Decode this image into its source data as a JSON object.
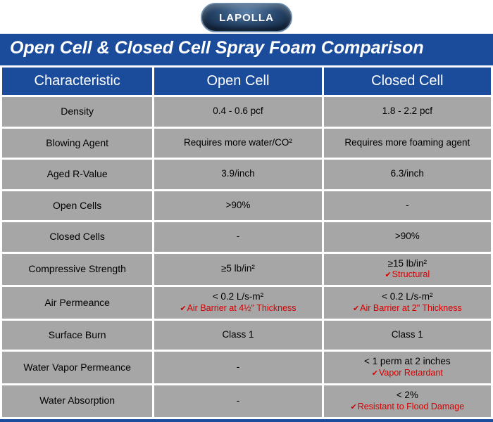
{
  "logo_text": "LAPOLLA",
  "title": "Open Cell & Closed Cell Spray Foam Comparison",
  "colors": {
    "header_bg": "#1b4b9b",
    "cell_bg": "#a6a6a6",
    "note_color": "#d40000",
    "page_bg": "#ffffff",
    "header_text": "#ffffff",
    "cell_text": "#000000"
  },
  "table": {
    "columns": [
      "Characteristic",
      "Open Cell",
      "Closed Cell"
    ],
    "rows": [
      {
        "char": "Density",
        "open": {
          "v": "0.4 - 0.6 pcf"
        },
        "closed": {
          "v": "1.8 - 2.2 pcf"
        }
      },
      {
        "char": "Blowing Agent",
        "open": {
          "v": "Requires more water/CO²"
        },
        "closed": {
          "v": "Requires more foaming agent"
        }
      },
      {
        "char": "Aged R-Value",
        "open": {
          "v": "3.9/inch"
        },
        "closed": {
          "v": "6.3/inch"
        }
      },
      {
        "char": "Open Cells",
        "open": {
          "v": ">90%"
        },
        "closed": {
          "v": "-"
        }
      },
      {
        "char": "Closed Cells",
        "open": {
          "v": "-"
        },
        "closed": {
          "v": ">90%"
        }
      },
      {
        "char": "Compressive Strength",
        "open": {
          "v": "≥5 lb/in²"
        },
        "closed": {
          "v": "≥15 lb/in²",
          "note": "Structural"
        }
      },
      {
        "char": "Air Permeance",
        "open": {
          "v": "< 0.2 L/s-m²",
          "note": "Air Barrier at 4½\" Thickness"
        },
        "closed": {
          "v": "< 0.2 L/s-m²",
          "note": "Air Barrier at 2\" Thickness"
        }
      },
      {
        "char": "Surface Burn",
        "open": {
          "v": "Class 1"
        },
        "closed": {
          "v": "Class 1"
        }
      },
      {
        "char": "Water Vapor Permeance",
        "open": {
          "v": "-"
        },
        "closed": {
          "v": "< 1 perm at 2 inches",
          "note": "Vapor Retardant"
        }
      },
      {
        "char": "Water Absorption",
        "open": {
          "v": "-"
        },
        "closed": {
          "v": "< 2%",
          "note": "Resistant to Flood Damage"
        }
      }
    ]
  }
}
